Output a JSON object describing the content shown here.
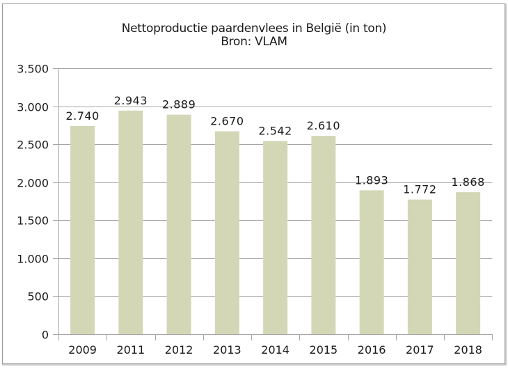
{
  "chart_data": {
    "type": "bar",
    "title": "Nettoproductie paardenvlees in België (in ton)",
    "subtitle": "Bron: VLAM",
    "categories": [
      "2009",
      "2011",
      "2012",
      "2013",
      "2014",
      "2015",
      "2016",
      "2017",
      "2018"
    ],
    "values": [
      2740,
      2943,
      2889,
      2670,
      2542,
      2610,
      1893,
      1772,
      1868
    ],
    "data_labels": [
      "2.740",
      "2.943",
      "2.889",
      "2.670",
      "2.542",
      "2.610",
      "1.893",
      "1.772",
      "1.868"
    ],
    "xlabel": "",
    "ylabel": "",
    "ylim": [
      0,
      3500
    ],
    "yticks": [
      0,
      500,
      1000,
      1500,
      2000,
      2500,
      3000,
      3500
    ],
    "ytick_labels": [
      "0",
      "500",
      "1.000",
      "1.500",
      "2.000",
      "2.500",
      "3.000",
      "3.500"
    ],
    "grid": true,
    "legend": false,
    "colors": {
      "bar": "#d3d7b6",
      "grid": "#a6a6a6",
      "axis": "#a6a6a6",
      "border": "#9a9a9a"
    }
  }
}
